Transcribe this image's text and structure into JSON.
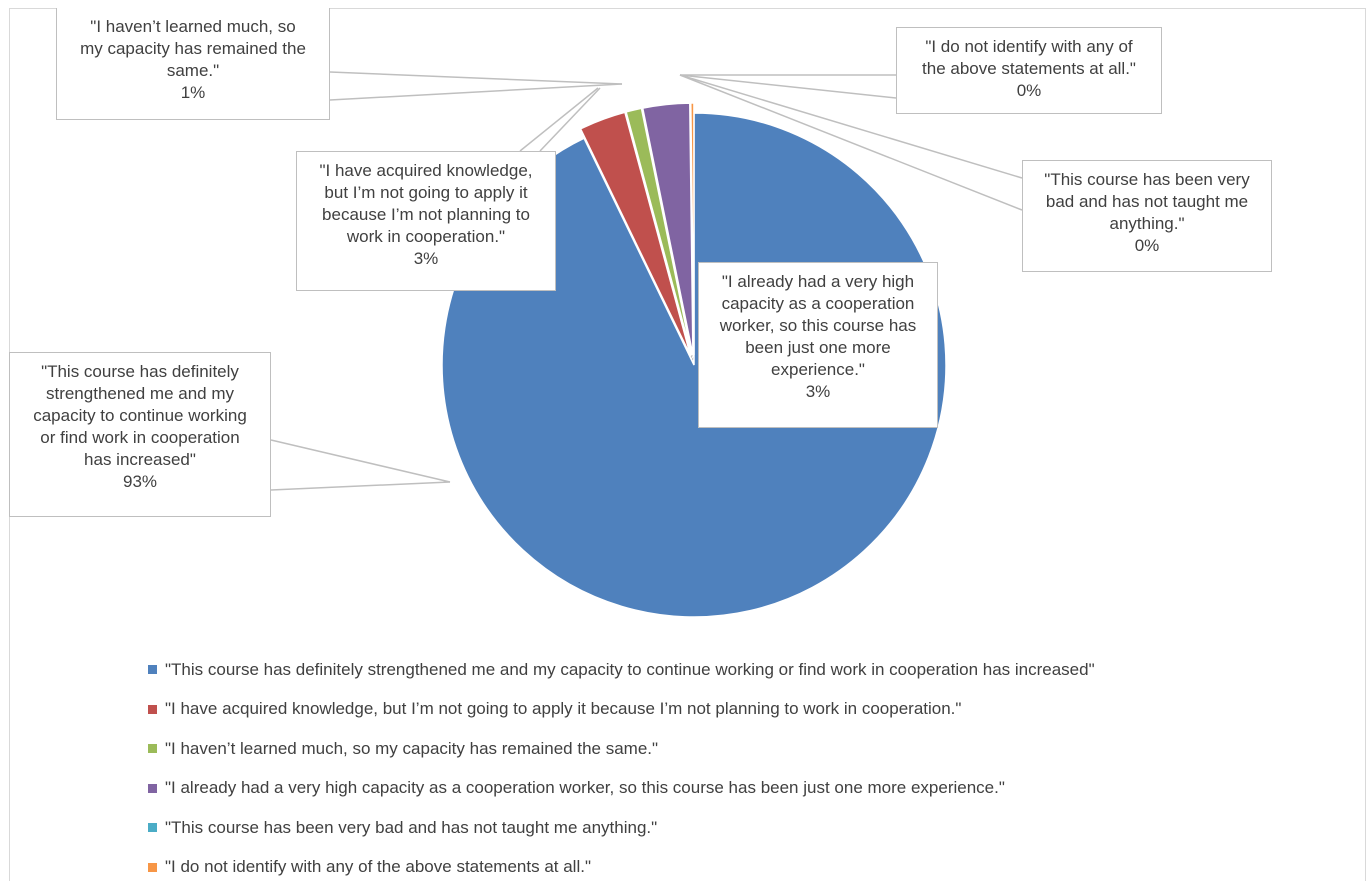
{
  "chart_data": {
    "type": "pie",
    "series": [
      {
        "label": "\"This course has definitely strengthened me and my capacity to continue working or find work in cooperation has increased\"",
        "value": 93,
        "data_label": "93%",
        "color": "#4F81BD"
      },
      {
        "label": "\"I have acquired knowledge, but I’m not going to apply it because I’m not planning to work in cooperation.\"",
        "value": 3,
        "data_label": "3%",
        "color": "#C0504D"
      },
      {
        "label": "\"I haven’t learned much, so my capacity has remained the same.\"",
        "value": 1,
        "data_label": "1%",
        "color": "#9BBB59"
      },
      {
        "label": "\"I already had a very high capacity as a cooperation worker, so this course has been just one more experience.\"",
        "value": 3,
        "data_label": "3%",
        "color": "#8064A2"
      },
      {
        "label": "\"This course has been very bad and has not taught me anything.\"",
        "value": 0,
        "data_label": "0%",
        "color": "#4BACC6"
      },
      {
        "label": "\"I do not identify with any of the above statements at all.\"",
        "value": 0.2,
        "data_label": "0%",
        "color": "#F79646"
      }
    ],
    "callouts": [
      {
        "lines": [
          "\"This course has definitely",
          "strengthened me and my",
          "capacity to continue working",
          "or find work in cooperation",
          "has increased\""
        ],
        "pct": "93%"
      },
      {
        "lines": [
          "\"I have acquired knowledge,",
          "but I’m not going to apply it",
          "because I’m not planning to",
          "work in cooperation.\""
        ],
        "pct": "3%"
      },
      {
        "lines": [
          "\"I haven’t learned much, so",
          "my capacity has remained the",
          "same.\""
        ],
        "pct": "1%"
      },
      {
        "lines": [
          "\"I already had a very high",
          "capacity as a cooperation",
          "worker, so this course has",
          "been just one more",
          "experience.\""
        ],
        "pct": "3%"
      },
      {
        "lines": [
          "\"This course has been very",
          "bad and has not taught me",
          "anything.\""
        ],
        "pct": "0%"
      },
      {
        "lines": [
          "\"I do not identify with any of",
          "the above statements at all.\""
        ],
        "pct": "0%"
      }
    ],
    "legend_position": "bottom-left"
  }
}
